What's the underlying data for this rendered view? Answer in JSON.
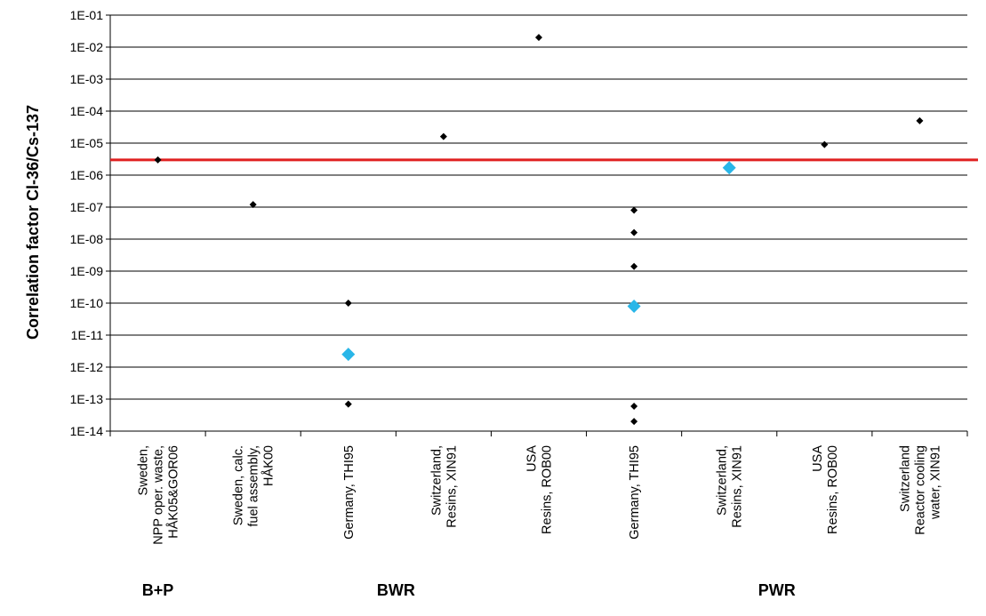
{
  "chart_data": {
    "type": "scatter",
    "title": "",
    "ylabel": "Correlation factor Cl-36/Cs-137",
    "xlabel": "",
    "y_scale": "log",
    "ylim": [
      1e-14,
      0.1
    ],
    "yticks": [
      "1E-01",
      "1E-02",
      "1E-03",
      "1E-04",
      "1E-05",
      "1E-06",
      "1E-07",
      "1E-08",
      "1E-09",
      "1E-10",
      "1E-11",
      "1E-12",
      "1E-13",
      "1E-14"
    ],
    "grid": "horizontal",
    "categories": [
      [
        "Sweden,",
        "NPP oper. waste,",
        "HÅK05&GOR06"
      ],
      [
        "Sweden, calc.",
        "fuel assembly,",
        "HÅK00"
      ],
      [
        "Germany, THI95"
      ],
      [
        "Switzerland,",
        "Resins, XIN91"
      ],
      [
        "USA",
        "Resins, ROB00"
      ],
      [
        "Germany, THI95"
      ],
      [
        "Switzerland,",
        "Resins, XIN91"
      ],
      [
        "USA",
        "Resins, ROB00"
      ],
      [
        "Switzerland",
        "Reactor cooling",
        "water, XIN91"
      ]
    ],
    "groups": [
      {
        "label": "B+P",
        "from": 0,
        "to": 0
      },
      {
        "label": "BWR",
        "from": 1,
        "to": 4
      },
      {
        "label": "PWR",
        "from": 5,
        "to": 8
      }
    ],
    "series": [
      {
        "marker": "small-diamond",
        "color": "#000000",
        "points": [
          [
            0,
            3e-06
          ],
          [
            1,
            1.2e-07
          ],
          [
            2,
            1e-10
          ],
          [
            2,
            7e-14
          ],
          [
            3,
            1.6e-05
          ],
          [
            4,
            0.02
          ],
          [
            5,
            8e-08
          ],
          [
            5,
            1.6e-08
          ],
          [
            5,
            1.4e-09
          ],
          [
            5,
            6e-14
          ],
          [
            5,
            2e-14
          ],
          [
            6,
            2e-06
          ],
          [
            6,
            1.6e-06
          ],
          [
            7,
            9e-06
          ],
          [
            8,
            5e-05
          ]
        ]
      },
      {
        "marker": "large-diamond",
        "color": "#29b6e8",
        "points": [
          [
            2,
            2.5e-12
          ],
          [
            5,
            8e-11
          ],
          [
            6,
            1.7e-06
          ]
        ]
      }
    ],
    "reference_line": {
      "y": 3e-06,
      "color": "#e02020"
    }
  }
}
